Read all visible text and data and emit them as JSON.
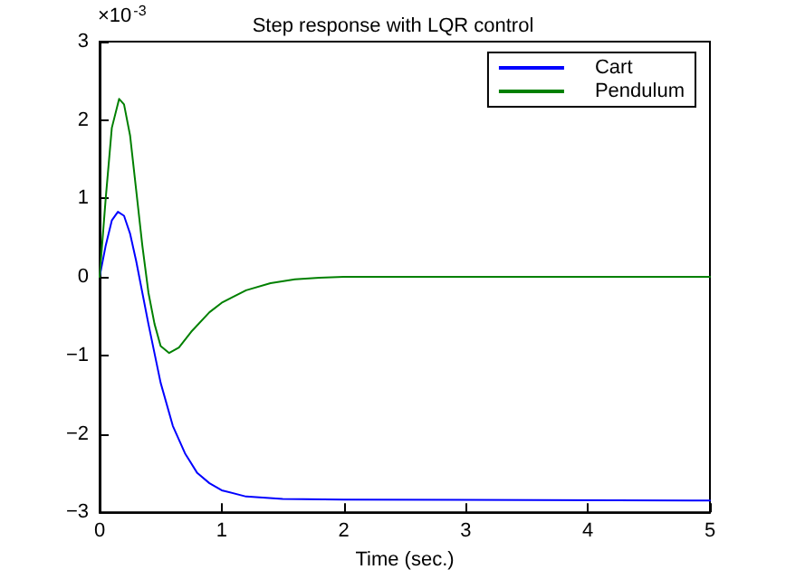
{
  "chart_data": {
    "type": "line",
    "title": "Step response with LQR control",
    "xlabel": "Time (sec.)",
    "annotations": [
      "×10$^{-3}$"
    ],
    "xlim": [
      0,
      5
    ],
    "xticks": [
      0,
      1,
      2,
      3,
      4,
      5
    ],
    "ylim": [
      -3,
      3
    ],
    "yticks": [
      -3,
      -2,
      -1,
      0,
      1,
      2,
      3
    ],
    "grid": false,
    "legend": "top right",
    "marker": "none",
    "line_style": "solid",
    "series": [
      {
        "name": "Cart",
        "color": "#0000ff",
        "x": [
          0,
          0.05,
          0.1,
          0.15,
          0.2,
          0.25,
          0.3,
          0.35,
          0.4,
          0.5,
          0.6,
          0.7,
          0.8,
          0.9,
          1.0,
          1.2,
          1.5,
          2,
          5
        ],
        "values": [
          0,
          0.4,
          0.72,
          0.83,
          0.78,
          0.55,
          0.2,
          -0.2,
          -0.6,
          -1.35,
          -1.9,
          -2.25,
          -2.5,
          -2.63,
          -2.72,
          -2.8,
          -2.83,
          -2.84,
          -2.85
        ]
      },
      {
        "name": "Pendulum",
        "color": "#008000",
        "x": [
          0,
          0.05,
          0.1,
          0.16,
          0.2,
          0.25,
          0.3,
          0.35,
          0.4,
          0.45,
          0.5,
          0.57,
          0.65,
          0.75,
          0.9,
          1.0,
          1.2,
          1.4,
          1.6,
          1.8,
          2,
          5
        ],
        "values": [
          0,
          1.0,
          1.9,
          2.27,
          2.2,
          1.8,
          1.1,
          0.4,
          -0.2,
          -0.6,
          -0.88,
          -0.97,
          -0.9,
          -0.7,
          -0.45,
          -0.33,
          -0.17,
          -0.08,
          -0.03,
          -0.01,
          0,
          0
        ]
      }
    ]
  }
}
